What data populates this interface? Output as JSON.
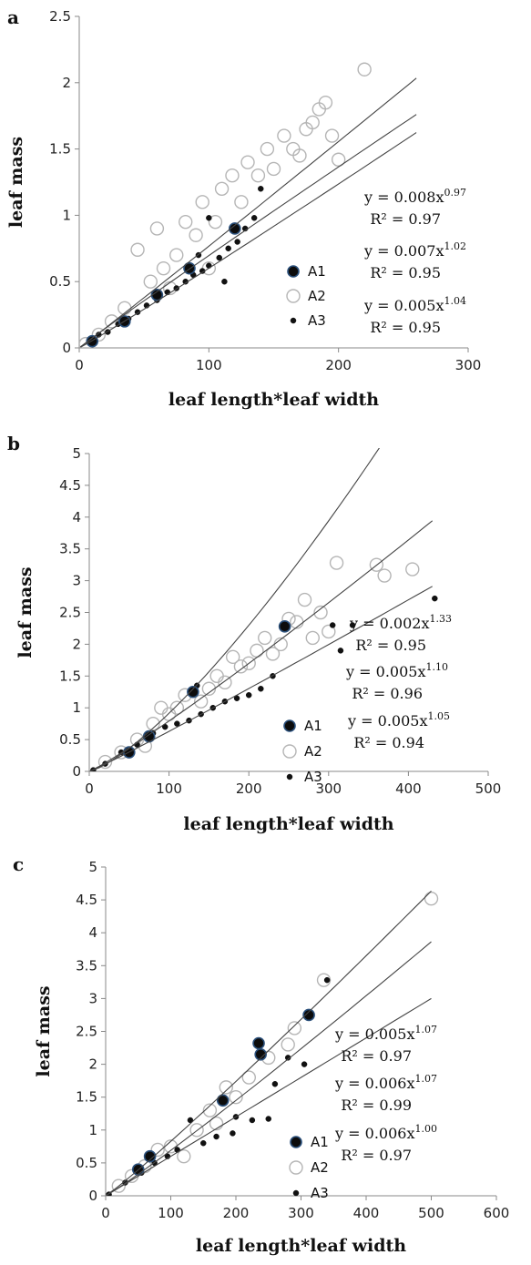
{
  "chart_data": [
    {
      "panel": "a",
      "type": "scatter",
      "xlabel": "leaf length*leaf width",
      "ylabel": "leaf mass",
      "xlim": [
        0,
        300
      ],
      "ylim": [
        0,
        2.5
      ],
      "xticks": [
        "0",
        "100",
        "200",
        "300"
      ],
      "yticks": [
        "0",
        "0.5",
        "1",
        "1.5",
        "2",
        "2.5"
      ],
      "legend": [
        "A1",
        "A2",
        "A3"
      ],
      "series": [
        {
          "name": "A1",
          "points": [
            [
              10,
              0.05
            ],
            [
              35,
              0.2
            ],
            [
              60,
              0.4
            ],
            [
              85,
              0.6
            ],
            [
              120,
              0.9
            ]
          ]
        },
        {
          "name": "A2",
          "points": [
            [
              5,
              0.03
            ],
            [
              15,
              0.1
            ],
            [
              25,
              0.2
            ],
            [
              35,
              0.3
            ],
            [
              45,
              0.74
            ],
            [
              55,
              0.5
            ],
            [
              65,
              0.6
            ],
            [
              75,
              0.7
            ],
            [
              82,
              0.95
            ],
            [
              90,
              0.85
            ],
            [
              95,
              1.1
            ],
            [
              105,
              0.95
            ],
            [
              110,
              1.2
            ],
            [
              118,
              1.3
            ],
            [
              125,
              1.1
            ],
            [
              130,
              1.4
            ],
            [
              138,
              1.3
            ],
            [
              145,
              1.5
            ],
            [
              150,
              1.35
            ],
            [
              158,
              1.6
            ],
            [
              165,
              1.5
            ],
            [
              170,
              1.45
            ],
            [
              175,
              1.65
            ],
            [
              180,
              1.7
            ],
            [
              185,
              1.8
            ],
            [
              190,
              1.85
            ],
            [
              195,
              1.6
            ],
            [
              200,
              1.42
            ],
            [
              220,
              2.1
            ],
            [
              60,
              0.9
            ],
            [
              70,
              0.45
            ],
            [
              100,
              0.6
            ]
          ]
        },
        {
          "name": "A3",
          "points": [
            [
              8,
              0.06
            ],
            [
              15,
              0.1
            ],
            [
              22,
              0.12
            ],
            [
              30,
              0.18
            ],
            [
              38,
              0.22
            ],
            [
              45,
              0.27
            ],
            [
              52,
              0.32
            ],
            [
              60,
              0.36
            ],
            [
              68,
              0.42
            ],
            [
              75,
              0.45
            ],
            [
              82,
              0.5
            ],
            [
              88,
              0.55
            ],
            [
              95,
              0.58
            ],
            [
              100,
              0.62
            ],
            [
              108,
              0.68
            ],
            [
              115,
              0.75
            ],
            [
              122,
              0.8
            ],
            [
              128,
              0.9
            ],
            [
              135,
              0.98
            ],
            [
              112,
              0.5
            ],
            [
              140,
              1.2
            ],
            [
              100,
              0.98
            ],
            [
              92,
              0.7
            ]
          ]
        }
      ],
      "fits": [
        {
          "a": 0.008,
          "b": 0.97,
          "equation": "y = 0.008x",
          "exponent": "0.97",
          "r2": "R² = 0.97",
          "x_end": 260
        },
        {
          "a": 0.007,
          "b": 1.02,
          "equation": "y = 0.007x",
          "exponent": "1.02",
          "r2": "R² = 0.95",
          "x_end": 260
        },
        {
          "a": 0.005,
          "b": 1.04,
          "equation": "y = 0.005x",
          "exponent": "1.04",
          "r2": "R² = 0.95",
          "x_end": 260
        }
      ]
    },
    {
      "panel": "b",
      "type": "scatter",
      "xlabel": "leaf length*leaf width",
      "ylabel": "leaf mass",
      "xlim": [
        0,
        500
      ],
      "ylim": [
        0,
        5
      ],
      "xticks": [
        "0",
        "100",
        "200",
        "300",
        "400",
        "500"
      ],
      "yticks": [
        "0",
        "0.5",
        "1",
        "1.5",
        "2",
        "2.5",
        "3",
        "3.5",
        "4",
        "4.5",
        "5"
      ],
      "legend": [
        "A1",
        "A2",
        "A3"
      ],
      "series": [
        {
          "name": "A1",
          "points": [
            [
              50,
              0.3
            ],
            [
              75,
              0.55
            ],
            [
              130,
              1.25
            ],
            [
              245,
              2.28
            ]
          ]
        },
        {
          "name": "A2",
          "points": [
            [
              20,
              0.15
            ],
            [
              40,
              0.3
            ],
            [
              60,
              0.5
            ],
            [
              80,
              0.75
            ],
            [
              100,
              0.9
            ],
            [
              110,
              1.0
            ],
            [
              120,
              1.2
            ],
            [
              140,
              1.1
            ],
            [
              150,
              1.3
            ],
            [
              160,
              1.5
            ],
            [
              170,
              1.4
            ],
            [
              180,
              1.8
            ],
            [
              190,
              1.65
            ],
            [
              200,
              1.7
            ],
            [
              210,
              1.9
            ],
            [
              220,
              2.1
            ],
            [
              230,
              1.85
            ],
            [
              240,
              2.0
            ],
            [
              250,
              2.4
            ],
            [
              260,
              2.35
            ],
            [
              270,
              2.7
            ],
            [
              280,
              2.1
            ],
            [
              290,
              2.5
            ],
            [
              300,
              2.2
            ],
            [
              310,
              3.28
            ],
            [
              360,
              3.25
            ],
            [
              370,
              3.08
            ],
            [
              405,
              3.18
            ],
            [
              70,
              0.4
            ],
            [
              90,
              1.0
            ]
          ]
        },
        {
          "name": "A3",
          "points": [
            [
              5,
              0.02
            ],
            [
              20,
              0.12
            ],
            [
              40,
              0.3
            ],
            [
              60,
              0.42
            ],
            [
              80,
              0.6
            ],
            [
              95,
              0.7
            ],
            [
              110,
              0.75
            ],
            [
              125,
              0.8
            ],
            [
              140,
              0.9
            ],
            [
              155,
              1.0
            ],
            [
              170,
              1.1
            ],
            [
              185,
              1.15
            ],
            [
              200,
              1.2
            ],
            [
              215,
              1.3
            ],
            [
              230,
              1.5
            ],
            [
              305,
              2.3
            ],
            [
              315,
              1.9
            ],
            [
              330,
              2.3
            ],
            [
              433,
              2.72
            ],
            [
              135,
              1.35
            ]
          ]
        }
      ],
      "fits": [
        {
          "a": 0.002,
          "b": 1.33,
          "equation": "y = 0.002x",
          "exponent": "1.33",
          "r2": "R² = 0.95",
          "x_end": 480
        },
        {
          "a": 0.005,
          "b": 1.1,
          "equation": "y = 0.005x",
          "exponent": "1.10",
          "r2": "R² = 0.96",
          "x_end": 430
        },
        {
          "a": 0.005,
          "b": 1.05,
          "equation": "y = 0.005x",
          "exponent": "1.05",
          "r2": "R² = 0.94",
          "x_end": 430
        }
      ]
    },
    {
      "panel": "c",
      "type": "scatter",
      "xlabel": "leaf length*leaf width",
      "ylabel": "leaf mass",
      "xlim": [
        0,
        600
      ],
      "ylim": [
        0,
        5
      ],
      "xticks": [
        "0",
        "100",
        "200",
        "300",
        "400",
        "500",
        "600"
      ],
      "yticks": [
        "0",
        "0.5",
        "1",
        "1.5",
        "2",
        "2.5",
        "3",
        "3.5",
        "4",
        "4.5",
        "5"
      ],
      "legend": [
        "A1",
        "A2",
        "A3"
      ],
      "series": [
        {
          "name": "A1",
          "points": [
            [
              50,
              0.4
            ],
            [
              68,
              0.6
            ],
            [
              180,
              1.45
            ],
            [
              235,
              2.32
            ],
            [
              238,
              2.15
            ],
            [
              312,
              2.75
            ]
          ]
        },
        {
          "name": "A2",
          "points": [
            [
              20,
              0.15
            ],
            [
              40,
              0.3
            ],
            [
              60,
              0.45
            ],
            [
              80,
              0.7
            ],
            [
              100,
              0.75
            ],
            [
              120,
              0.6
            ],
            [
              140,
              1.0
            ],
            [
              160,
              1.3
            ],
            [
              170,
              1.1
            ],
            [
              185,
              1.65
            ],
            [
              200,
              1.5
            ],
            [
              220,
              1.8
            ],
            [
              250,
              2.1
            ],
            [
              280,
              2.3
            ],
            [
              290,
              2.55
            ],
            [
              335,
              3.28
            ],
            [
              500,
              4.52
            ]
          ]
        },
        {
          "name": "A3",
          "points": [
            [
              5,
              0.02
            ],
            [
              30,
              0.2
            ],
            [
              55,
              0.35
            ],
            [
              75,
              0.5
            ],
            [
              95,
              0.6
            ],
            [
              110,
              0.7
            ],
            [
              130,
              1.15
            ],
            [
              150,
              0.8
            ],
            [
              170,
              0.9
            ],
            [
              195,
              0.95
            ],
            [
              200,
              1.2
            ],
            [
              225,
              1.15
            ],
            [
              250,
              1.17
            ],
            [
              260,
              1.7
            ],
            [
              280,
              2.1
            ],
            [
              305,
              2.0
            ],
            [
              340,
              3.28
            ]
          ]
        }
      ],
      "fits": [
        {
          "a": 0.005,
          "b": 1.07,
          "equation": "y = 0.005x",
          "exponent": "1.07",
          "r2": "R² = 0.97",
          "x_end": 500
        },
        {
          "a": 0.006,
          "b": 1.07,
          "equation": "y = 0.006x",
          "exponent": "1.07",
          "r2": "R² = 0.99",
          "x_end": 500
        },
        {
          "a": 0.006,
          "b": 1.0,
          "equation": "y = 0.006x",
          "exponent": "1.00",
          "r2": "R² = 0.97",
          "x_end": 500
        }
      ]
    }
  ]
}
